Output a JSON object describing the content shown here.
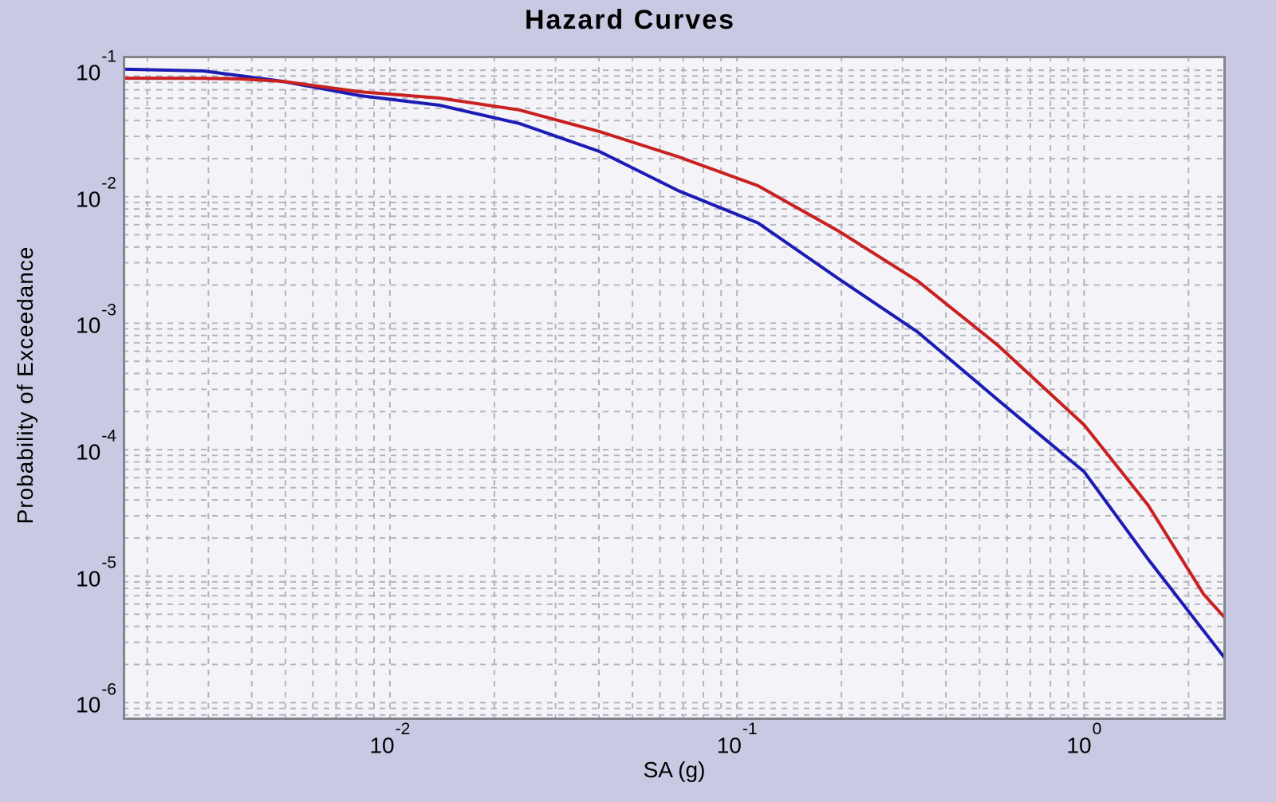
{
  "figure": {
    "background_color": "#c9c9e3",
    "plot_background_color": "#f3f3f8",
    "grid_color": "#b4b4c0",
    "border_color": "#84848e",
    "text_color": "#000000"
  },
  "chart_data": {
    "type": "line",
    "title": "Hazard Curves",
    "xlabel": "SA (g)",
    "ylabel": "Probability of Exceedance",
    "x_scale": "log",
    "y_scale": "log",
    "xlim": [
      0.0017,
      2.56
    ],
    "ylim": [
      7.3e-07,
      0.13
    ],
    "grid": "on, dashed, major and minor log gridlines",
    "legend_position": "none",
    "tick_base": "10",
    "x_tick_exponents": [
      -2,
      -1,
      0
    ],
    "y_tick_exponents": [
      -1,
      -2,
      -3,
      -4,
      -5,
      -6
    ],
    "series": [
      {
        "name": "blue-curve",
        "color": "#1c1cb4",
        "points": [
          [
            0.0017,
            0.102
          ],
          [
            0.0029,
            0.0986
          ],
          [
            0.0037,
            0.0904
          ],
          [
            0.0049,
            0.0817
          ],
          [
            0.0082,
            0.0629
          ],
          [
            0.0139,
            0.0529
          ],
          [
            0.0236,
            0.0379
          ],
          [
            0.0401,
            0.0228
          ],
          [
            0.068,
            0.0111
          ],
          [
            0.115,
            0.0062
          ],
          [
            0.196,
            0.00225
          ],
          [
            0.332,
            0.00085
          ],
          [
            0.562,
            0.00025
          ],
          [
            1.0,
            6.7e-05
          ],
          [
            1.53,
            1.36e-05
          ],
          [
            2.21,
            3.7e-06
          ],
          [
            2.56,
            2.2e-06
          ]
        ]
      },
      {
        "name": "red-curve",
        "color": "#c92020",
        "points": [
          [
            0.0017,
            0.0865
          ],
          [
            0.0029,
            0.0863
          ],
          [
            0.0037,
            0.0853
          ],
          [
            0.0049,
            0.0817
          ],
          [
            0.0082,
            0.0676
          ],
          [
            0.0139,
            0.0602
          ],
          [
            0.0236,
            0.0485
          ],
          [
            0.0401,
            0.0328
          ],
          [
            0.068,
            0.0206
          ],
          [
            0.115,
            0.0122
          ],
          [
            0.196,
            0.00536
          ],
          [
            0.332,
            0.00215
          ],
          [
            0.562,
            0.000676
          ],
          [
            1.0,
            0.000157
          ],
          [
            1.53,
            3.63e-05
          ],
          [
            2.21,
            7.2e-06
          ],
          [
            2.56,
            4.6e-06
          ]
        ]
      }
    ]
  }
}
